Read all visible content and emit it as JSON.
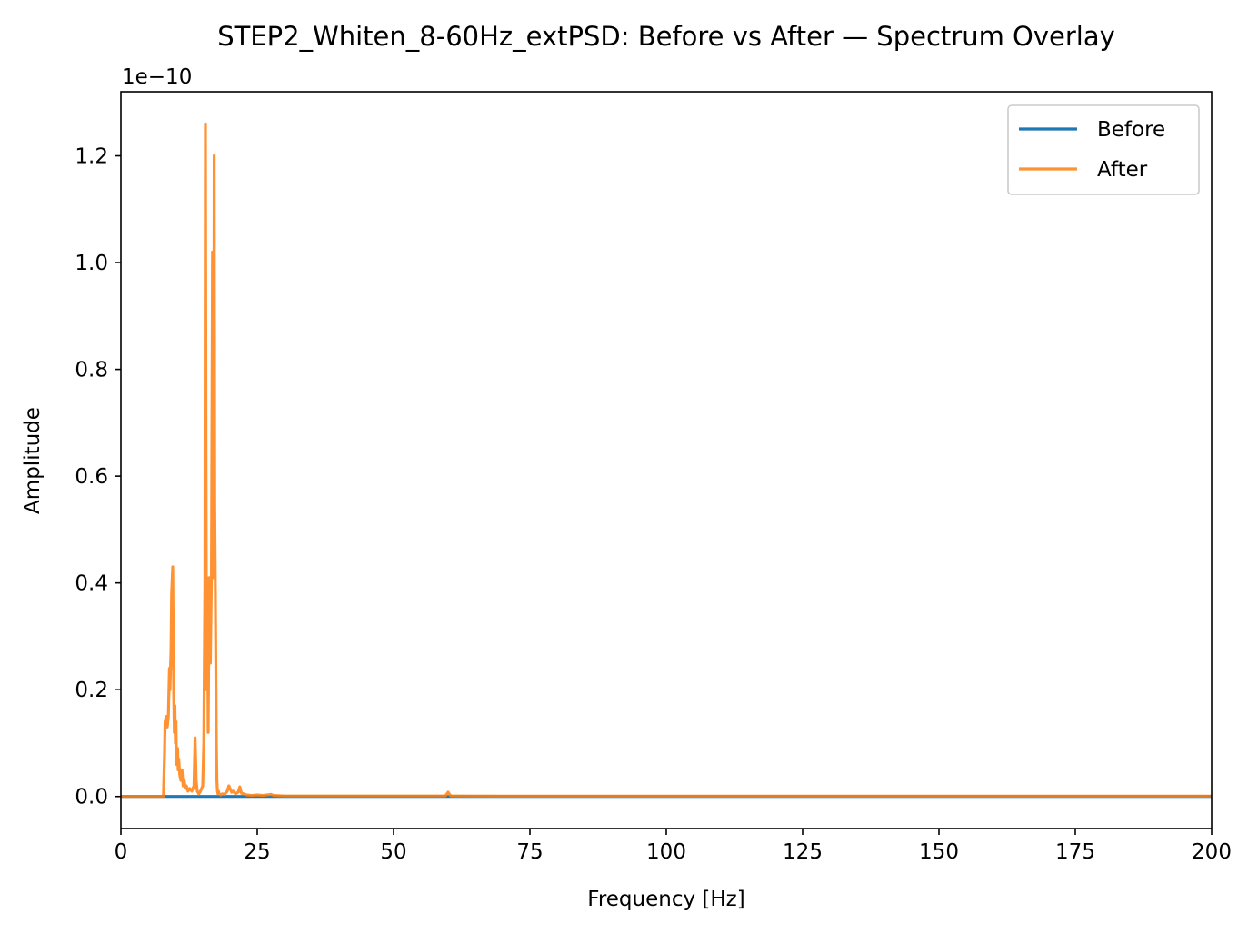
{
  "chart_data": {
    "type": "line",
    "title": "STEP2_Whiten_8-60Hz_extPSD: Before vs After — Spectrum Overlay",
    "xlabel": "Frequency [Hz]",
    "ylabel": "Amplitude",
    "y_offset_label": "1e−10",
    "xlim": [
      0,
      200
    ],
    "ylim": [
      -0.06,
      1.32
    ],
    "y_scale_factor": 1e-10,
    "x_ticks": [
      0,
      25,
      50,
      75,
      100,
      125,
      150,
      175,
      200
    ],
    "x_tick_labels": [
      "0",
      "25",
      "50",
      "75",
      "100",
      "125",
      "150",
      "175",
      "200"
    ],
    "y_ticks": [
      0.0,
      0.2,
      0.4,
      0.6,
      0.8,
      1.0,
      1.2
    ],
    "y_tick_labels": [
      "0.0",
      "0.2",
      "0.4",
      "0.6",
      "0.8",
      "1.0",
      "1.2"
    ],
    "grid": false,
    "legend_position": "top-right",
    "series": [
      {
        "name": "Before",
        "color": "#1f77b4",
        "x": [
          0,
          200
        ],
        "y": [
          0,
          0
        ]
      },
      {
        "name": "After",
        "color": "#ff7f0e",
        "x": [
          0,
          7.8,
          8.0,
          8.1,
          8.3,
          8.5,
          8.7,
          8.9,
          9.0,
          9.2,
          9.3,
          9.5,
          9.6,
          9.7,
          9.8,
          9.9,
          10.0,
          10.1,
          10.2,
          10.4,
          10.5,
          10.6,
          10.8,
          11.0,
          11.2,
          11.4,
          11.6,
          11.8,
          12.0,
          12.3,
          12.6,
          13.0,
          13.4,
          13.6,
          13.8,
          14.0,
          14.3,
          14.6,
          15.0,
          15.2,
          15.4,
          15.5,
          15.6,
          15.7,
          15.8,
          15.9,
          16.0,
          16.2,
          16.4,
          16.6,
          16.8,
          17.0,
          17.1,
          17.2,
          17.3,
          17.5,
          17.6,
          17.7,
          17.8,
          17.9,
          18.0,
          18.3,
          18.6,
          19.0,
          19.5,
          19.8,
          20.0,
          20.3,
          20.6,
          21.0,
          21.5,
          21.8,
          22.1,
          22.5,
          23.0,
          24.0,
          25.0,
          26.0,
          27.5,
          28.0,
          30.0,
          35.0,
          40.0,
          59.5,
          60.0,
          60.5,
          70.0,
          100.0,
          150.0,
          200.0
        ],
        "y": [
          0,
          0,
          0.08,
          0.14,
          0.15,
          0.13,
          0.15,
          0.24,
          0.2,
          0.28,
          0.38,
          0.43,
          0.3,
          0.18,
          0.12,
          0.17,
          0.1,
          0.14,
          0.06,
          0.09,
          0.05,
          0.07,
          0.04,
          0.03,
          0.05,
          0.02,
          0.03,
          0.015,
          0.02,
          0.01,
          0.015,
          0.01,
          0.02,
          0.11,
          0.03,
          0.01,
          0.005,
          0.01,
          0.02,
          0.1,
          0.4,
          1.26,
          0.66,
          0.2,
          0.41,
          0.35,
          0.12,
          0.41,
          0.25,
          0.41,
          1.02,
          0.41,
          1.2,
          0.55,
          0.41,
          0.1,
          0.03,
          0.01,
          0.005,
          0.01,
          0.005,
          0.003,
          0.005,
          0.004,
          0.01,
          0.02,
          0.015,
          0.008,
          0.01,
          0.005,
          0.008,
          0.018,
          0.006,
          0.005,
          0.003,
          0.002,
          0.003,
          0.002,
          0.004,
          0.002,
          0.001,
          0.001,
          0.001,
          0.001,
          0.008,
          0.001,
          0.0005,
          0.0005,
          0.0005,
          0.0005
        ]
      }
    ]
  }
}
